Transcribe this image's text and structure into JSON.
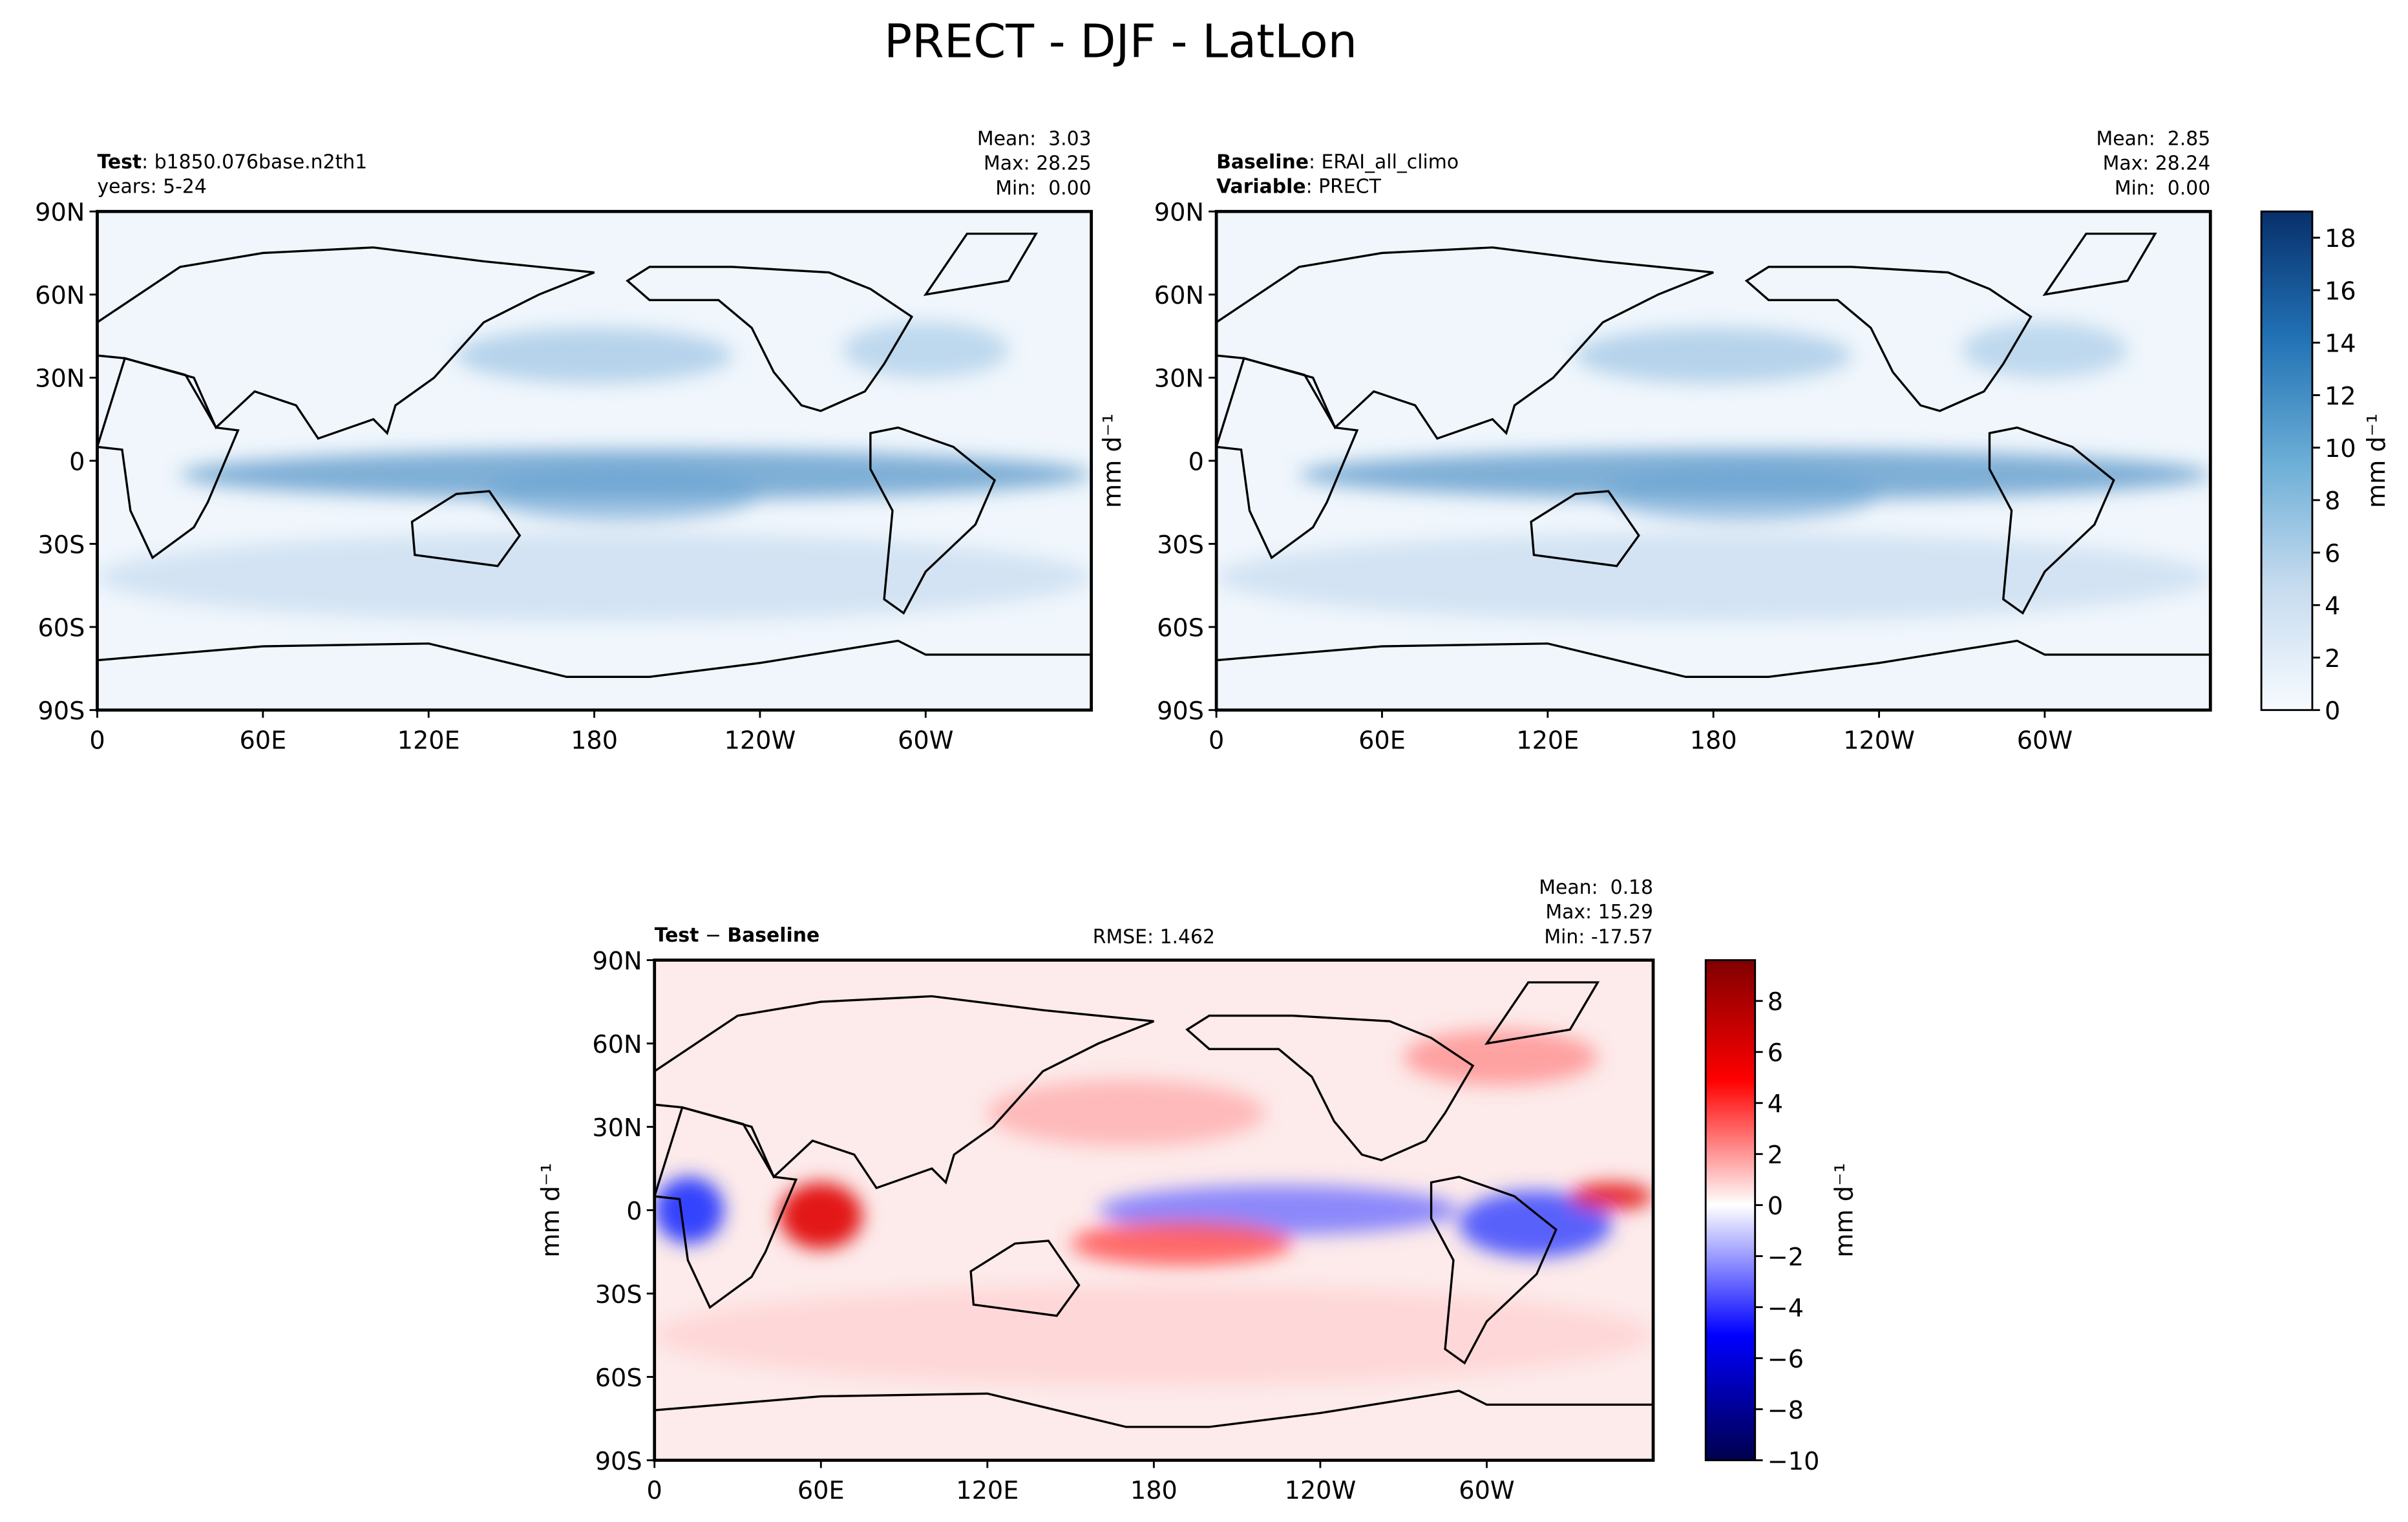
{
  "title": "PRECT - DJF - LatLon",
  "chart_data": [
    {
      "type": "map",
      "cmap": "Blues",
      "left_lines": [
        [
          {
            "text": "Test",
            "bold": true
          },
          {
            "text": ": b1850.076base.n2th1"
          }
        ],
        [
          {
            "text": "years: 5-24"
          }
        ]
      ],
      "stats": [
        "Mean:  3.03",
        "Max: 28.25",
        "Min:  0.00"
      ],
      "xlim": [
        0,
        360
      ],
      "ylim": [
        -90,
        90
      ],
      "xticks": [
        0,
        {
          "value": 60,
          "label": "60E"
        },
        {
          "value": 120,
          "label": "120E"
        },
        180,
        {
          "value": 240,
          "label": "120W"
        },
        {
          "value": 300,
          "label": "60W"
        }
      ],
      "yticks": [
        {
          "value": -90,
          "label": "90S"
        },
        {
          "value": -60,
          "label": "60S"
        },
        {
          "value": -30,
          "label": "30S"
        },
        0,
        {
          "value": 30,
          "label": "30N"
        },
        {
          "value": 60,
          "label": "60N"
        },
        {
          "value": 90,
          "label": "90N"
        }
      ]
    },
    {
      "type": "map",
      "cmap": "Blues",
      "left_lines": [
        [
          {
            "text": "Baseline",
            "bold": true
          },
          {
            "text": ": ERAI_all_climo"
          }
        ],
        [
          {
            "text": "Variable",
            "bold": true
          },
          {
            "text": ": PRECT"
          }
        ]
      ],
      "stats": [
        "Mean:  2.85",
        "Max: 28.24",
        "Min:  0.00"
      ],
      "ylabel": "mm d⁻¹",
      "xlim": [
        0,
        360
      ],
      "ylim": [
        -90,
        90
      ],
      "xticks": [
        0,
        {
          "value": 60,
          "label": "60E"
        },
        {
          "value": 120,
          "label": "120E"
        },
        180,
        {
          "value": 240,
          "label": "120W"
        },
        {
          "value": 300,
          "label": "60W"
        }
      ],
      "yticks": [
        {
          "value": -90,
          "label": "90S"
        },
        {
          "value": -60,
          "label": "60S"
        },
        {
          "value": -30,
          "label": "30S"
        },
        0,
        {
          "value": 30,
          "label": "30N"
        },
        {
          "value": 60,
          "label": "60N"
        },
        {
          "value": 90,
          "label": "90N"
        }
      ],
      "colorbar": {
        "label": "mm d⁻¹",
        "lim": [
          0,
          19
        ],
        "ticks": [
          0,
          2,
          4,
          6,
          8,
          10,
          12,
          14,
          16,
          18
        ]
      }
    },
    {
      "type": "map",
      "cmap": "seismic",
      "left_lines": [
        [
          {
            "text": "Test",
            "bold": true
          },
          {
            "text": " − "
          },
          {
            "text": "Baseline",
            "bold": true
          }
        ]
      ],
      "center_text": "RMSE: 1.462",
      "stats": [
        "Mean:  0.18",
        "Max: 15.29",
        "Min: -17.57"
      ],
      "ylabel": "mm d⁻¹",
      "xlim": [
        0,
        360
      ],
      "ylim": [
        -90,
        90
      ],
      "xticks": [
        0,
        {
          "value": 60,
          "label": "60E"
        },
        {
          "value": 120,
          "label": "120E"
        },
        180,
        {
          "value": 240,
          "label": "120W"
        },
        {
          "value": 300,
          "label": "60W"
        }
      ],
      "yticks": [
        {
          "value": -90,
          "label": "90S"
        },
        {
          "value": -60,
          "label": "60S"
        },
        {
          "value": -30,
          "label": "30S"
        },
        0,
        {
          "value": 30,
          "label": "30N"
        },
        {
          "value": 60,
          "label": "60N"
        },
        {
          "value": 90,
          "label": "90N"
        }
      ],
      "colorbar": {
        "label": "mm d⁻¹",
        "lim": [
          -10,
          9.6
        ],
        "ticks": [
          {
            "value": -10,
            "label": "−10"
          },
          {
            "value": -8,
            "label": "−8"
          },
          {
            "value": -6,
            "label": "−6"
          },
          {
            "value": -4,
            "label": "−4"
          },
          {
            "value": -2,
            "label": "−2"
          },
          0,
          2,
          4,
          6,
          8
        ]
      }
    }
  ]
}
